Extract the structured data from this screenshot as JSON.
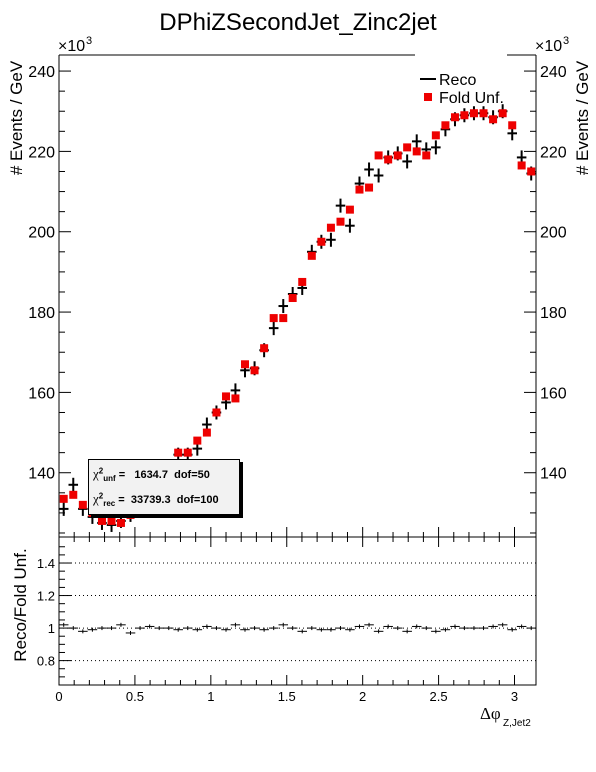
{
  "chart_data": [
    {
      "type": "scatter",
      "title": "DPhiZSecondJet_Zinc2jet",
      "xlabel": "",
      "ylabel": "# Events / GeV",
      "y_exponent_label": "×10",
      "y_exponent": "3",
      "xlim": [
        0,
        3.1416
      ],
      "ylim": [
        124,
        244
      ],
      "y_ticks": [
        "140",
        "160",
        "180",
        "200",
        "220",
        "240"
      ],
      "y_tick_values": [
        140,
        160,
        180,
        200,
        220,
        240
      ],
      "legend": {
        "placement": "top-right",
        "entries": [
          "Reco",
          "Fold Unf."
        ]
      },
      "series": [
        {
          "name": "Reco",
          "color": "#000000",
          "marker": "cross",
          "x": [
            0.031,
            0.094,
            0.157,
            0.22,
            0.283,
            0.346,
            0.408,
            0.471,
            0.534,
            0.597,
            0.66,
            0.723,
            0.785,
            0.848,
            0.911,
            0.974,
            1.037,
            1.1,
            1.162,
            1.225,
            1.288,
            1.351,
            1.414,
            1.477,
            1.539,
            1.602,
            1.665,
            1.728,
            1.791,
            1.854,
            1.916,
            1.979,
            2.042,
            2.105,
            2.168,
            2.231,
            2.293,
            2.356,
            2.419,
            2.482,
            2.545,
            2.608,
            2.67,
            2.733,
            2.796,
            2.859,
            2.922,
            2.985,
            3.047,
            3.11
          ],
          "y": [
            131.0,
            137.0,
            131.0,
            129.0,
            127.5,
            127.0,
            128.0,
            129.5,
            131.5,
            134.0,
            137.0,
            141.0,
            144.5,
            144.5,
            146.0,
            152.0,
            155.0,
            157.5,
            160.5,
            165.5,
            166.0,
            170.5,
            176.0,
            181.5,
            184.5,
            186.0,
            195.0,
            197.5,
            198.0,
            206.5,
            201.5,
            212.0,
            215.5,
            214.0,
            218.5,
            219.5,
            217.5,
            222.5,
            220.5,
            221.0,
            225.5,
            228.0,
            229.0,
            229.5,
            229.5,
            228.5,
            230.0,
            224.5,
            218.5,
            214.5
          ]
        },
        {
          "name": "Fold Unf.",
          "color": "#ee0000",
          "marker": "square",
          "x": [
            0.031,
            0.094,
            0.157,
            0.22,
            0.283,
            0.346,
            0.408,
            0.471,
            0.534,
            0.597,
            0.66,
            0.723,
            0.785,
            0.848,
            0.911,
            0.974,
            1.037,
            1.1,
            1.162,
            1.225,
            1.288,
            1.351,
            1.414,
            1.477,
            1.539,
            1.602,
            1.665,
            1.728,
            1.791,
            1.854,
            1.916,
            1.979,
            2.042,
            2.105,
            2.168,
            2.231,
            2.293,
            2.356,
            2.419,
            2.482,
            2.545,
            2.608,
            2.67,
            2.733,
            2.796,
            2.859,
            2.922,
            2.985,
            3.047,
            3.11
          ],
          "y": [
            133.5,
            134.5,
            132.0,
            130.0,
            128.0,
            128.0,
            127.5,
            129.5,
            131.0,
            134.0,
            136.5,
            140.5,
            145.0,
            145.0,
            148.0,
            150.0,
            155.0,
            159.0,
            158.5,
            167.0,
            165.5,
            171.0,
            178.5,
            178.5,
            183.5,
            187.5,
            194.0,
            197.5,
            201.0,
            202.5,
            205.5,
            210.5,
            211.0,
            219.0,
            218.0,
            219.0,
            221.0,
            220.0,
            219.0,
            224.0,
            226.5,
            228.5,
            229.0,
            229.5,
            229.5,
            228.0,
            229.5,
            226.5,
            216.5,
            215.0
          ]
        }
      ],
      "stats": {
        "unf_label": "χ",
        "unf_sup": "2",
        "unf_sub": "unf",
        "unf_value": "1634.7",
        "unf_dof": "dof=50",
        "rec_label": "χ",
        "rec_sup": "2",
        "rec_sub": "rec",
        "rec_value": "33739.3",
        "rec_dof": "dof=100"
      }
    },
    {
      "type": "scatter",
      "xlabel": "Δφ",
      "xlabel_sub": "Z,Jet2",
      "ylabel": "Reco/Fold Unf.",
      "xlim": [
        0,
        3.1416
      ],
      "ylim": [
        0.65,
        1.56
      ],
      "x_ticks": [
        "0",
        "0.5",
        "1",
        "1.5",
        "2",
        "2.5",
        "3"
      ],
      "x_tick_values": [
        0,
        0.5,
        1,
        1.5,
        2,
        2.5,
        3
      ],
      "y_ticks": [
        "0.8",
        "1",
        "1.2",
        "1.4"
      ],
      "y_tick_values": [
        0.8,
        1.0,
        1.2,
        1.4
      ],
      "reference_lines": [
        0.8,
        1.0,
        1.2,
        1.4
      ],
      "grid": "dotted horizontal at reference lines",
      "series": [
        {
          "name": "",
          "color": "#000000",
          "marker": "cross",
          "x": [
            0.031,
            0.094,
            0.157,
            0.22,
            0.283,
            0.346,
            0.408,
            0.471,
            0.534,
            0.597,
            0.66,
            0.723,
            0.785,
            0.848,
            0.911,
            0.974,
            1.037,
            1.1,
            1.162,
            1.225,
            1.288,
            1.351,
            1.414,
            1.477,
            1.539,
            1.602,
            1.665,
            1.728,
            1.791,
            1.854,
            1.916,
            1.979,
            2.042,
            2.105,
            2.168,
            2.231,
            2.293,
            2.356,
            2.419,
            2.482,
            2.545,
            2.608,
            2.67,
            2.733,
            2.796,
            2.859,
            2.922,
            2.985,
            3.047,
            3.11
          ],
          "y": [
            1.02,
            1.0,
            0.98,
            0.99,
            1.0,
            1.0,
            1.02,
            0.97,
            1.0,
            1.01,
            1.0,
            1.0,
            0.99,
            1.0,
            0.99,
            1.01,
            1.0,
            0.99,
            1.02,
            0.99,
            1.0,
            0.99,
            1.0,
            1.02,
            1.0,
            0.98,
            1.0,
            0.99,
            0.99,
            1.0,
            0.99,
            1.01,
            1.02,
            0.98,
            1.01,
            1.0,
            0.98,
            1.01,
            1.0,
            0.98,
            0.99,
            1.01,
            1.0,
            1.0,
            1.0,
            1.01,
            1.02,
            0.99,
            1.01,
            1.0
          ]
        }
      ]
    }
  ]
}
